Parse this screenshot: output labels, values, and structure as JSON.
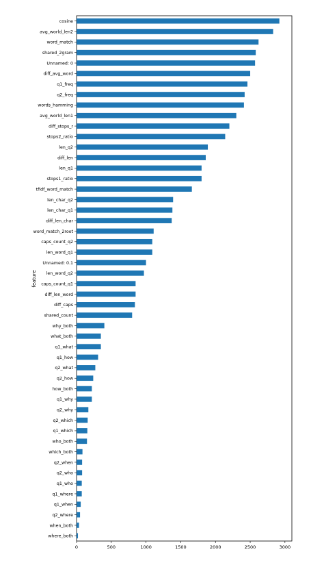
{
  "chart_data": {
    "type": "bar",
    "orientation": "horizontal",
    "title": "",
    "xlabel": "",
    "ylabel": "feature",
    "xlim": [
      0,
      3100
    ],
    "x_ticks": [
      0,
      500,
      1000,
      1500,
      2000,
      2500,
      3000
    ],
    "bar_color": "#1f77b4",
    "grid": false,
    "categories": [
      "cosine",
      "avg_world_len2",
      "word_match",
      "shared_2gram",
      "Unnamed: 0",
      "diff_avg_word",
      "q1_freq",
      "q2_freq",
      "words_hamming",
      "avg_world_len1",
      "diff_stops_r",
      "stops2_ratio",
      "len_q2",
      "diff_len",
      "len_q1",
      "stops1_ratio",
      "tfidf_word_match",
      "len_char_q2",
      "len_char_q1",
      "diff_len_char",
      "word_match_2root",
      "caps_count_q2",
      "len_word_q1",
      "Unnamed: 0.1",
      "len_word_q2",
      "caps_count_q1",
      "diff_len_word",
      "diff_caps",
      "shared_count",
      "why_both",
      "what_both",
      "q1_what",
      "q1_how",
      "q2_what",
      "q2_how",
      "how_both",
      "q1_why",
      "q2_why",
      "q2_which",
      "q1_which",
      "who_both",
      "which_both",
      "q2_when",
      "q2_who",
      "q1_who",
      "q1_where",
      "q1_when",
      "q2_where",
      "when_both",
      "where_both"
    ],
    "values": [
      2920,
      2830,
      2620,
      2580,
      2570,
      2500,
      2460,
      2420,
      2410,
      2300,
      2200,
      2140,
      1890,
      1860,
      1800,
      1800,
      1660,
      1390,
      1380,
      1370,
      1110,
      1090,
      1090,
      1000,
      970,
      850,
      850,
      840,
      800,
      400,
      350,
      350,
      310,
      270,
      240,
      220,
      220,
      170,
      160,
      155,
      150,
      85,
      80,
      80,
      75,
      75,
      60,
      50,
      35,
      20
    ]
  }
}
